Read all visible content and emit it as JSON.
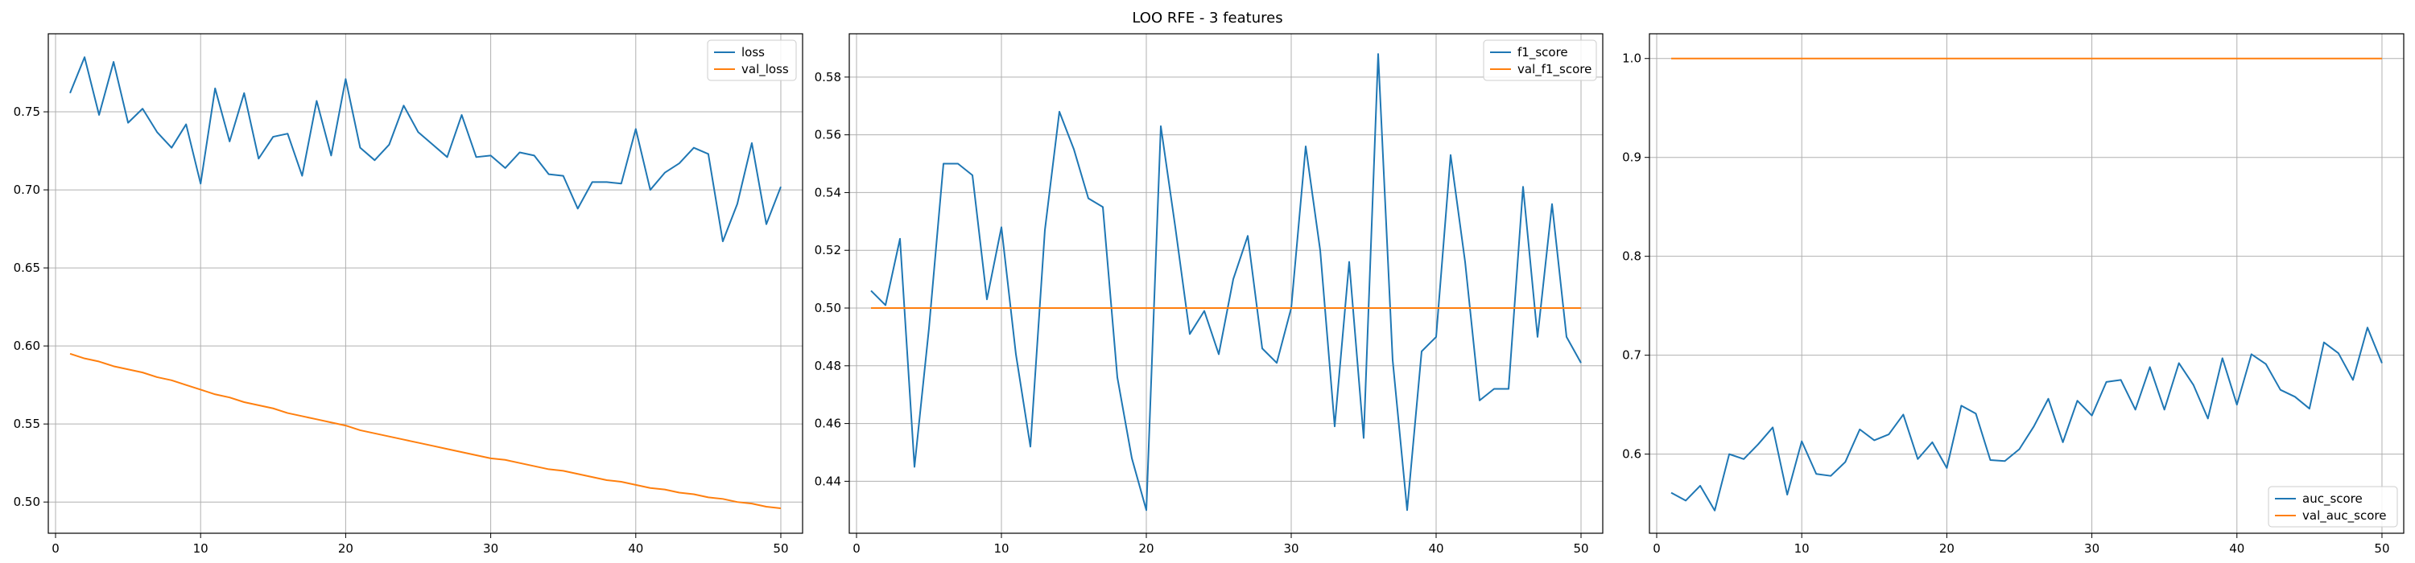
{
  "figure_title": "LOO RFE - 3 features",
  "colors": {
    "series1": "#1f77b4",
    "series2": "#ff7f0e",
    "grid": "#b0b0b0"
  },
  "chart_data": [
    {
      "type": "line",
      "xlim": [
        -0.5,
        51.5
      ],
      "ylim": [
        0.48,
        0.8
      ],
      "x_ticks": [
        0,
        10,
        20,
        30,
        40,
        50
      ],
      "y_ticks": [
        0.5,
        0.55,
        0.6,
        0.65,
        0.7,
        0.75
      ],
      "y_tick_labels": [
        "0.50",
        "0.55",
        "0.60",
        "0.65",
        "0.70",
        "0.75"
      ],
      "grid": true,
      "legend_position": "top-right",
      "x": [
        1,
        2,
        3,
        4,
        5,
        6,
        7,
        8,
        9,
        10,
        11,
        12,
        13,
        14,
        15,
        16,
        17,
        18,
        19,
        20,
        21,
        22,
        23,
        24,
        25,
        26,
        27,
        28,
        29,
        30,
        31,
        32,
        33,
        34,
        35,
        36,
        37,
        38,
        39,
        40,
        41,
        42,
        43,
        44,
        45,
        46,
        47,
        48,
        49,
        50
      ],
      "series": [
        {
          "name": "loss",
          "color": "#1f77b4",
          "values": [
            0.762,
            0.785,
            0.748,
            0.782,
            0.743,
            0.752,
            0.737,
            0.727,
            0.742,
            0.704,
            0.765,
            0.731,
            0.762,
            0.72,
            0.734,
            0.736,
            0.709,
            0.757,
            0.722,
            0.771,
            0.727,
            0.719,
            0.729,
            0.754,
            0.737,
            0.729,
            0.721,
            0.748,
            0.721,
            0.722,
            0.714,
            0.724,
            0.722,
            0.71,
            0.709,
            0.688,
            0.705,
            0.705,
            0.704,
            0.739,
            0.7,
            0.711,
            0.717,
            0.727,
            0.723,
            0.667,
            0.691,
            0.73,
            0.678,
            0.702
          ]
        },
        {
          "name": "val_loss",
          "color": "#ff7f0e",
          "values": [
            0.595,
            0.592,
            0.59,
            0.587,
            0.585,
            0.583,
            0.58,
            0.578,
            0.575,
            0.572,
            0.569,
            0.567,
            0.564,
            0.562,
            0.56,
            0.557,
            0.555,
            0.553,
            0.551,
            0.549,
            0.546,
            0.544,
            0.542,
            0.54,
            0.538,
            0.536,
            0.534,
            0.532,
            0.53,
            0.528,
            0.527,
            0.525,
            0.523,
            0.521,
            0.52,
            0.518,
            0.516,
            0.514,
            0.513,
            0.511,
            0.509,
            0.508,
            0.506,
            0.505,
            0.503,
            0.502,
            0.5,
            0.499,
            0.497,
            0.496
          ]
        }
      ]
    },
    {
      "type": "line",
      "xlim": [
        -0.5,
        51.5
      ],
      "ylim": [
        0.422,
        0.595
      ],
      "x_ticks": [
        0,
        10,
        20,
        30,
        40,
        50
      ],
      "y_ticks": [
        0.44,
        0.46,
        0.48,
        0.5,
        0.52,
        0.54,
        0.56,
        0.58
      ],
      "y_tick_labels": [
        "0.44",
        "0.46",
        "0.48",
        "0.50",
        "0.52",
        "0.54",
        "0.56",
        "0.58"
      ],
      "grid": true,
      "legend_position": "top-right",
      "x": [
        1,
        2,
        3,
        4,
        5,
        6,
        7,
        8,
        9,
        10,
        11,
        12,
        13,
        14,
        15,
        16,
        17,
        18,
        19,
        20,
        21,
        22,
        23,
        24,
        25,
        26,
        27,
        28,
        29,
        30,
        31,
        32,
        33,
        34,
        35,
        36,
        37,
        38,
        39,
        40,
        41,
        42,
        43,
        44,
        45,
        46,
        47,
        48,
        49,
        50
      ],
      "series": [
        {
          "name": "f1_score",
          "color": "#1f77b4",
          "values": [
            0.506,
            0.501,
            0.524,
            0.445,
            0.493,
            0.55,
            0.55,
            0.546,
            0.503,
            0.528,
            0.484,
            0.452,
            0.527,
            0.568,
            0.555,
            0.538,
            0.535,
            0.476,
            0.448,
            0.43,
            0.563,
            0.528,
            0.491,
            0.499,
            0.484,
            0.51,
            0.525,
            0.486,
            0.481,
            0.5,
            0.556,
            0.52,
            0.459,
            0.516,
            0.455,
            0.588,
            0.482,
            0.43,
            0.485,
            0.49,
            0.553,
            0.516,
            0.468,
            0.472,
            0.472,
            0.542,
            0.49,
            0.536,
            0.49,
            0.481
          ]
        },
        {
          "name": "val_f1_score",
          "color": "#ff7f0e",
          "values": [
            0.5,
            0.5,
            0.5,
            0.5,
            0.5,
            0.5,
            0.5,
            0.5,
            0.5,
            0.5,
            0.5,
            0.5,
            0.5,
            0.5,
            0.5,
            0.5,
            0.5,
            0.5,
            0.5,
            0.5,
            0.5,
            0.5,
            0.5,
            0.5,
            0.5,
            0.5,
            0.5,
            0.5,
            0.5,
            0.5,
            0.5,
            0.5,
            0.5,
            0.5,
            0.5,
            0.5,
            0.5,
            0.5,
            0.5,
            0.5,
            0.5,
            0.5,
            0.5,
            0.5,
            0.5,
            0.5,
            0.5,
            0.5,
            0.5,
            0.5
          ]
        }
      ]
    },
    {
      "type": "line",
      "xlim": [
        -0.5,
        51.5
      ],
      "ylim": [
        0.52,
        1.025
      ],
      "x_ticks": [
        0,
        10,
        20,
        30,
        40,
        50
      ],
      "y_ticks": [
        0.6,
        0.7,
        0.8,
        0.9,
        1.0
      ],
      "y_tick_labels": [
        "0.6",
        "0.7",
        "0.8",
        "0.9",
        "1.0"
      ],
      "grid": true,
      "legend_position": "bottom-right",
      "x": [
        1,
        2,
        3,
        4,
        5,
        6,
        7,
        8,
        9,
        10,
        11,
        12,
        13,
        14,
        15,
        16,
        17,
        18,
        19,
        20,
        21,
        22,
        23,
        24,
        25,
        26,
        27,
        28,
        29,
        30,
        31,
        32,
        33,
        34,
        35,
        36,
        37,
        38,
        39,
        40,
        41,
        42,
        43,
        44,
        45,
        46,
        47,
        48,
        49,
        50
      ],
      "series": [
        {
          "name": "auc_score",
          "color": "#1f77b4",
          "values": [
            0.561,
            0.553,
            0.568,
            0.543,
            0.6,
            0.595,
            0.61,
            0.627,
            0.559,
            0.613,
            0.58,
            0.578,
            0.592,
            0.625,
            0.614,
            0.62,
            0.64,
            0.595,
            0.612,
            0.586,
            0.649,
            0.641,
            0.594,
            0.593,
            0.605,
            0.628,
            0.656,
            0.612,
            0.654,
            0.639,
            0.673,
            0.675,
            0.645,
            0.688,
            0.645,
            0.692,
            0.67,
            0.636,
            0.697,
            0.65,
            0.701,
            0.691,
            0.665,
            0.658,
            0.646,
            0.713,
            0.702,
            0.675,
            0.728,
            0.692
          ]
        },
        {
          "name": "val_auc_score",
          "color": "#ff7f0e",
          "values": [
            1.0,
            1.0,
            1.0,
            1.0,
            1.0,
            1.0,
            1.0,
            1.0,
            1.0,
            1.0,
            1.0,
            1.0,
            1.0,
            1.0,
            1.0,
            1.0,
            1.0,
            1.0,
            1.0,
            1.0,
            1.0,
            1.0,
            1.0,
            1.0,
            1.0,
            1.0,
            1.0,
            1.0,
            1.0,
            1.0,
            1.0,
            1.0,
            1.0,
            1.0,
            1.0,
            1.0,
            1.0,
            1.0,
            1.0,
            1.0,
            1.0,
            1.0,
            1.0,
            1.0,
            1.0,
            1.0,
            1.0,
            1.0,
            1.0,
            1.0
          ]
        }
      ]
    }
  ]
}
